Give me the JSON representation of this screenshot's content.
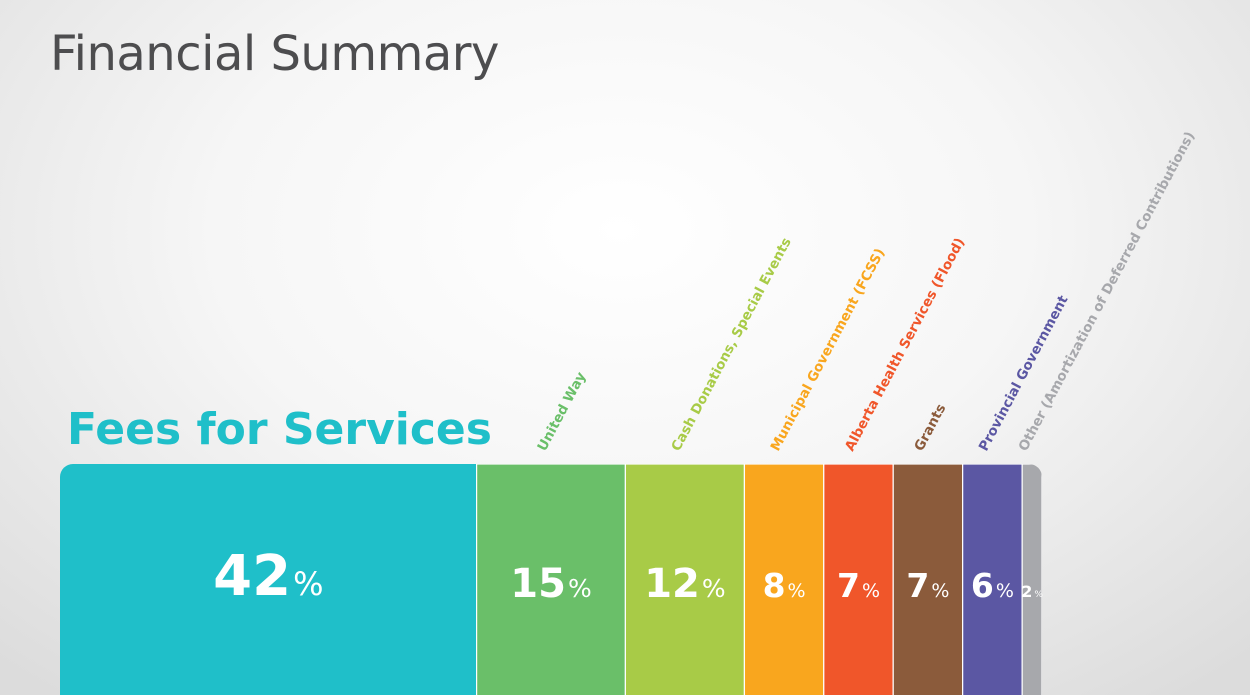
{
  "title": "Financial Summary",
  "chart_data": {
    "type": "bar",
    "subtype": "stacked-100",
    "categories": [
      "Fees for Services",
      "United Way",
      "Cash Donations, Special Events",
      "Municipal Government (FCSS)",
      "Alberta Health Services (Flood)",
      "Grants",
      "Provincial Government",
      "Other (Amortization of Deferred Contributions)"
    ],
    "values": [
      42,
      15,
      12,
      8,
      7,
      7,
      6,
      2
    ],
    "unit": "%",
    "colors": [
      "#1fbfc9",
      "#6abf69",
      "#a8cb47",
      "#f9a61e",
      "#f0562a",
      "#8b5b3b",
      "#5b57a3",
      "#a7a8ac"
    ],
    "legend": "none",
    "grid": false
  }
}
